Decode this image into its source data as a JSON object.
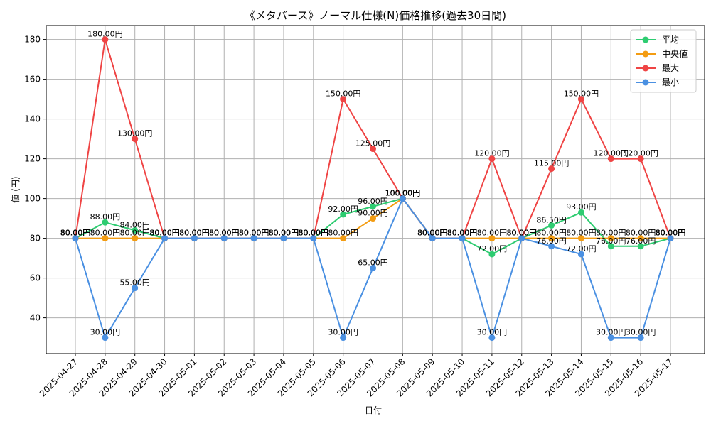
{
  "chart_data": {
    "type": "line",
    "title": "《メタバース》ノーマル仕様(N)価格推移(過去30日間)",
    "xlabel": "日付",
    "ylabel": "値 (円)",
    "ylim": [
      22,
      187
    ],
    "yticks": [
      40,
      60,
      80,
      100,
      120,
      140,
      160,
      180
    ],
    "grid": true,
    "legend_position": "top-right",
    "label_suffix": "円",
    "categories": [
      "2025-04-27",
      "2025-04-28",
      "2025-04-29",
      "2025-04-30",
      "2025-05-01",
      "2025-05-02",
      "2025-05-03",
      "2025-05-04",
      "2025-05-05",
      "2025-05-06",
      "2025-05-07",
      "2025-05-08",
      "2025-05-09",
      "2025-05-10",
      "2025-05-11",
      "2025-05-12",
      "2025-05-13",
      "2025-05-14",
      "2025-05-15",
      "2025-05-16",
      "2025-05-17"
    ],
    "series": [
      {
        "name": "平均",
        "color": "#2ecc71",
        "values": [
          80,
          88,
          84,
          80,
          80,
          80,
          80,
          80,
          80,
          92,
          96,
          100,
          80,
          80,
          72,
          80,
          86.5,
          93,
          76,
          76,
          80
        ]
      },
      {
        "name": "中央値",
        "color": "#f39c12",
        "values": [
          80,
          80,
          80,
          80,
          80,
          80,
          80,
          80,
          80,
          80,
          90,
          100,
          80,
          80,
          80,
          80,
          80,
          80,
          80,
          80,
          80
        ]
      },
      {
        "name": "最大",
        "color": "#ef4444",
        "values": [
          80,
          180,
          130,
          80,
          80,
          80,
          80,
          80,
          80,
          150,
          125,
          100,
          80,
          80,
          120,
          80,
          115,
          150,
          120,
          120,
          80
        ]
      },
      {
        "name": "最小",
        "color": "#4a90e2",
        "values": [
          80,
          30,
          55,
          80,
          80,
          80,
          80,
          80,
          80,
          30,
          65,
          100,
          80,
          80,
          30,
          80,
          76,
          72,
          30,
          30,
          80
        ]
      }
    ]
  }
}
